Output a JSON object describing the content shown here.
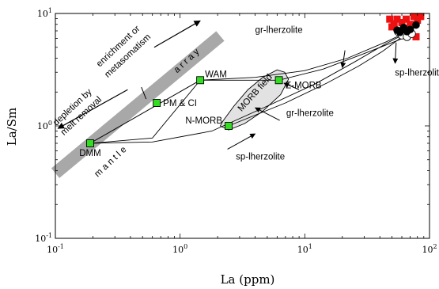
{
  "chart_data": {
    "type": "scatter",
    "xlabel": "La (ppm)",
    "ylabel": "La/Sm",
    "xscale": "log",
    "yscale": "log",
    "xlim": [
      0.1,
      100
    ],
    "ylim": [
      0.1,
      10
    ],
    "x_ticks": [
      {
        "value": 0.1,
        "base": "10",
        "exp": "-1"
      },
      {
        "value": 1,
        "base": "10",
        "exp": "0"
      },
      {
        "value": 10,
        "base": "10",
        "exp": "1"
      },
      {
        "value": 100,
        "base": "10",
        "exp": "2"
      }
    ],
    "y_ticks": [
      {
        "value": 0.1,
        "base": "10",
        "exp": "-1"
      },
      {
        "value": 1,
        "base": "10",
        "exp": "0"
      },
      {
        "value": 10,
        "base": "10",
        "exp": "1"
      }
    ],
    "reference_points": [
      {
        "name": "DMM",
        "x": 0.19,
        "y": 0.7
      },
      {
        "name": "PM & CI",
        "x": 0.65,
        "y": 1.6
      },
      {
        "name": "WAM",
        "x": 1.45,
        "y": 2.55
      },
      {
        "name": "E-MORB",
        "x": 6.2,
        "y": 2.55
      },
      {
        "name": "N-MORB",
        "x": 2.45,
        "y": 1.0
      }
    ],
    "mantle_array": {
      "x": [
        0.1,
        2.1
      ],
      "y": [
        0.38,
        6.3
      ],
      "top_label": "a r r a y",
      "bottom_label": "m a n t l e"
    },
    "trend_arrows": [
      {
        "label": "enrichment or metasomatism",
        "direction": "up-right"
      },
      {
        "label": "depletion by melt removal",
        "direction": "down-left"
      }
    ],
    "model_curves": [
      {
        "name": "gr-lherzolite",
        "x": [
          0.19,
          0.6,
          1.45,
          4,
          10,
          22,
          45,
          65,
          75
        ],
        "y": [
          0.7,
          0.78,
          2.55,
          2.7,
          3.1,
          4.0,
          5.6,
          6.8,
          7.4
        ]
      },
      {
        "name": "gr-lherzolite",
        "x": [
          6.2,
          14,
          30,
          50,
          68
        ],
        "y": [
          2.55,
          3.2,
          4.4,
          5.5,
          6.3
        ]
      },
      {
        "name": "sp-lherzolite",
        "x": [
          0.19,
          0.6,
          1.8,
          5,
          12,
          25,
          45,
          65,
          75
        ],
        "y": [
          0.7,
          0.72,
          0.9,
          1.5,
          2.35,
          3.7,
          5.4,
          6.7,
          7.4
        ]
      },
      {
        "name": "sp-lherzolite",
        "x": [
          2.45,
          7,
          15,
          27,
          42,
          58,
          72
        ],
        "y": [
          1.0,
          1.6,
          2.4,
          3.4,
          4.6,
          6.0,
          7.2
        ]
      }
    ],
    "morb_field": {
      "label": "MORB field",
      "x": [
        2.1,
        2.45,
        3.3,
        4.6,
        6.4,
        7.4,
        6.9,
        6.0,
        4.6,
        3.5,
        2.7,
        2.2,
        2.1
      ],
      "y": [
        1.0,
        0.92,
        1.05,
        1.35,
        1.9,
        2.6,
        3.0,
        3.15,
        2.7,
        2.1,
        1.5,
        1.1,
        1.0
      ]
    },
    "red_squares": [
      [
        48,
        8.9
      ],
      [
        55,
        8.9
      ],
      [
        65,
        8.9
      ],
      [
        75,
        9.4
      ],
      [
        85,
        9.4
      ],
      [
        52,
        8.1
      ],
      [
        60,
        8.3
      ],
      [
        70,
        8.0
      ],
      [
        80,
        8.7
      ],
      [
        68,
        6.6
      ],
      [
        78,
        6.2
      ],
      [
        50,
        7.6
      ]
    ],
    "black_circles": [
      [
        55,
        7.1
      ],
      [
        62,
        7.5
      ],
      [
        70,
        7.2
      ],
      [
        78,
        7.9
      ],
      [
        66,
        6.9
      ],
      [
        58,
        6.8
      ]
    ],
    "white_circles": [
      [
        60,
        6.4
      ],
      [
        66,
        6.2
      ],
      [
        72,
        6.6
      ],
      [
        56,
        6.9
      ]
    ],
    "curve_labels": [
      {
        "text": "gr-lherzolite",
        "x": 6.2,
        "y": 6.7
      },
      {
        "text": "sp-lherzolite",
        "x": 83,
        "y": 2.8
      },
      {
        "text": "gr-lherzolite",
        "x": 11,
        "y": 1.22
      },
      {
        "text": "sp-lherzolite",
        "x": 4.4,
        "y": 0.5
      }
    ],
    "colors": {
      "reference_point": "#33dd22",
      "red": "#ee1111",
      "band": "#a8a8a8",
      "field": "#e2e2e2"
    }
  }
}
